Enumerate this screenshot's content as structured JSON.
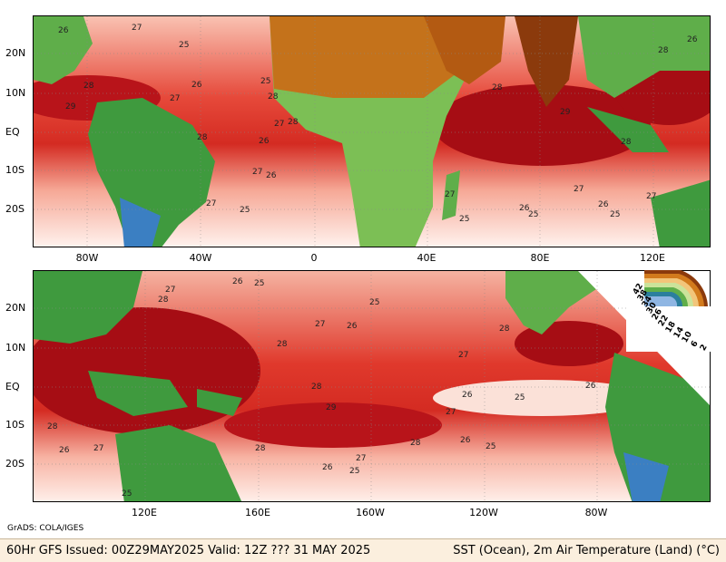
{
  "top_map": {
    "y_labels": [
      "20N",
      "10N",
      "EQ",
      "10S",
      "20S"
    ],
    "x_labels": [
      "80W",
      "40W",
      "0",
      "40E",
      "80E",
      "120E"
    ],
    "contours": [
      "26",
      "27",
      "25",
      "28",
      "29",
      "28",
      "27",
      "25",
      "26",
      "27",
      "28",
      "26",
      "27",
      "28",
      "25",
      "26",
      "27",
      "29",
      "28",
      "27",
      "26",
      "25",
      "27",
      "28",
      "26",
      "25",
      "27",
      "26",
      "28",
      "25"
    ]
  },
  "bottom_map": {
    "y_labels": [
      "20N",
      "10N",
      "EQ",
      "10S",
      "20S"
    ],
    "x_labels": [
      "120E",
      "160E",
      "160W",
      "120W",
      "80W"
    ],
    "contours": [
      "26",
      "25",
      "28",
      "27",
      "28",
      "26",
      "25",
      "27",
      "28",
      "29",
      "26",
      "25",
      "28",
      "27",
      "26",
      "28",
      "25",
      "27",
      "26",
      "25",
      "28",
      "26",
      "27",
      "25",
      "28",
      "27",
      "26"
    ]
  },
  "legend": {
    "labels": [
      "42",
      "38",
      "34",
      "30",
      "26",
      "22",
      "18",
      "14",
      "10",
      "6",
      "2"
    ]
  },
  "credit": "GrADS: COLA/IGES",
  "footer": {
    "left": "60Hr GFS Issued: 00Z29MAY2025 Valid: 12Z ??? 31 MAY 2025",
    "right": "SST (Ocean), 2m Air Temperature (Land) (°C)"
  },
  "colors": {
    "ocean_light": "#fde0d8",
    "ocean_mid": "#f26e58",
    "ocean_warm": "#d7261e",
    "ocean_hot": "#a00a10",
    "land_green": "#3f9a3e",
    "land_desert": "#c4721b",
    "land_cold": "#3b7fc2"
  }
}
